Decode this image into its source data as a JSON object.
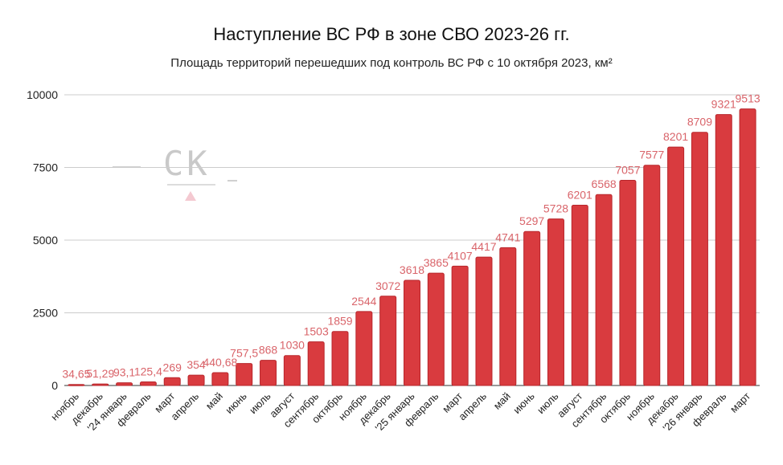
{
  "chart_data": {
    "type": "bar",
    "title": "Наступление ВС РФ в зоне СВО 2023-26 гг.",
    "subtitle": "Площадь территорий перешедших под контроль ВС РФ с 10 октября 2023, км²",
    "xlabel": "",
    "ylabel": "",
    "ylim": [
      0,
      10000
    ],
    "yticks": [
      0,
      2500,
      5000,
      7500,
      10000
    ],
    "grid": true,
    "bar_color": "#d93b3f",
    "label_color": "#d9646a",
    "categories": [
      "ноябрь",
      "декабрь",
      "'24 январь",
      "февраль",
      "март",
      "апрель",
      "май",
      "июнь",
      "июль",
      "август",
      "сентябрь",
      "октябрь",
      "ноябрь",
      "декабрь",
      "'25 январь",
      "февраль",
      "март",
      "апрель",
      "май",
      "июнь",
      "июль",
      "август",
      "сентябрь",
      "октябрь",
      "ноябрь",
      "декабрь",
      "'26 январь",
      "февраль",
      "март"
    ],
    "values": [
      34.65,
      51.29,
      93.1,
      125.4,
      269,
      354,
      440.68,
      757.5,
      868,
      1030,
      1503,
      1859,
      2544,
      3072,
      3618,
      3865,
      4107,
      4417,
      4741,
      5297,
      5728,
      6201,
      6568,
      7057,
      7577,
      8201,
      8709,
      9321,
      9513
    ],
    "data_labels": [
      "34,65",
      "51,29",
      "93,1",
      "125,4",
      "269",
      "354",
      "440,68",
      "757,5",
      "868",
      "1030",
      "1503",
      "1859",
      "2544",
      "3072",
      "3618",
      "3865",
      "4107",
      "4417",
      "4741",
      "5297",
      "5728",
      "6201",
      "6568",
      "7057",
      "7577",
      "8201",
      "8709",
      "9321",
      "9513"
    ]
  },
  "watermark": "СК"
}
